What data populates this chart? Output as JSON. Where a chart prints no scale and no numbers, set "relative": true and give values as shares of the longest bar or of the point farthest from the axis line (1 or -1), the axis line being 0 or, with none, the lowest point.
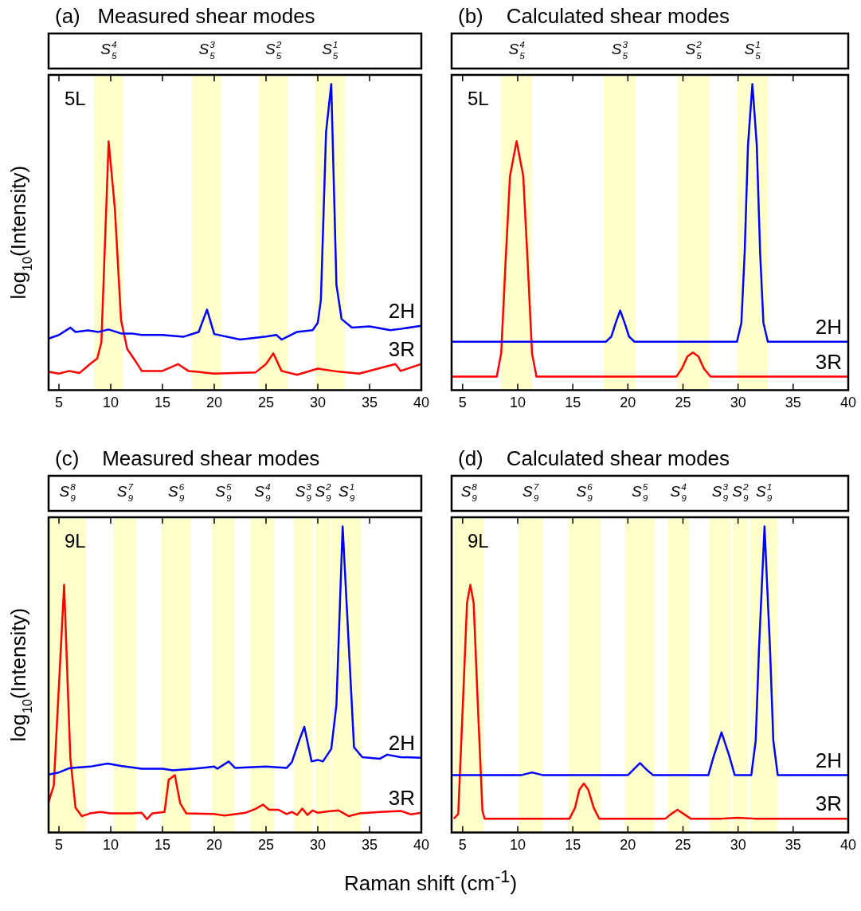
{
  "chart_data": [
    {
      "type": "line",
      "title": "(a)   Measured shear modes",
      "ylabel": "log$_{10}$(Intensity)",
      "relative": true,
      "xlim": [
        4,
        40
      ],
      "xticks": [
        5,
        10,
        15,
        20,
        25,
        30,
        35,
        40
      ],
      "annotations": [
        "5L",
        "S$_{5}$$^{4}$",
        "S$_{5}$$^{3}$",
        "S$_{5}$$^{2}$",
        "S$_{5}$$^{1}$"
      ],
      "bands": [
        {
          "axis": "x",
          "from": 8.4,
          "to": 11.2,
          "color": "#ffffcc"
        },
        {
          "axis": "x",
          "from": 17.85,
          "to": 20.7,
          "color": "#ffffcc"
        },
        {
          "axis": "x",
          "from": 24.3,
          "to": 27.1,
          "color": "#ffffcc"
        },
        {
          "axis": "x",
          "from": 29.75,
          "to": 32.6,
          "color": "#ffffcc"
        }
      ],
      "series": [
        {
          "name": "2H",
          "color": "#0000ff",
          "x": [
            4,
            5,
            6.1,
            6.6,
            7.8,
            8.8,
            9.8,
            11,
            12,
            13,
            15,
            17,
            18.5,
            19.3,
            20,
            22.5,
            25,
            26,
            26.5,
            28,
            29.5,
            30,
            30.3,
            30.8,
            31.3,
            31.8,
            32.3,
            33.3,
            35,
            37,
            38,
            40
          ],
          "values": [
            0.168,
            0.18,
            0.204,
            0.19,
            0.195,
            0.19,
            0.198,
            0.185,
            0.185,
            0.18,
            0.18,
            0.174,
            0.19,
            0.263,
            0.183,
            0.165,
            0.175,
            0.18,
            0.165,
            0.19,
            0.196,
            0.22,
            0.295,
            0.844,
            1.0,
            0.344,
            0.232,
            0.204,
            0.208,
            0.196,
            0.2,
            0.21
          ]
        },
        {
          "name": "3R",
          "color": "#ff0000",
          "x": [
            4,
            5,
            6,
            7,
            8,
            8.7,
            9.1,
            9.8,
            10.4,
            11,
            11.6,
            12.4,
            13,
            15,
            16.5,
            17.5,
            20,
            24,
            25,
            25.7,
            26.5,
            28,
            30,
            32,
            34,
            37.5,
            38,
            40
          ],
          "values": [
            0.06,
            0.054,
            0.0625,
            0.056,
            0.085,
            0.103,
            0.156,
            0.8125,
            0.594,
            0.228,
            0.134,
            0.094,
            0.0625,
            0.0625,
            0.085,
            0.0625,
            0.054,
            0.058,
            0.085,
            0.12,
            0.0625,
            0.05,
            0.07,
            0.06,
            0.054,
            0.085,
            0.0625,
            0.085
          ]
        }
      ]
    },
    {
      "type": "line",
      "title": "(b)    Calculated shear modes",
      "relative": true,
      "xlim": [
        4,
        40
      ],
      "xticks": [
        5,
        10,
        15,
        20,
        25,
        30,
        35,
        40
      ],
      "annotations": [
        "5L",
        "S$_{5}$$^{4}$",
        "S$_{5}$$^{3}$",
        "S$_{5}$$^{2}$",
        "S$_{5}$$^{1}$"
      ],
      "bands": [
        {
          "axis": "x",
          "from": 8.5,
          "to": 11.3,
          "color": "#ffffcc"
        },
        {
          "axis": "x",
          "from": 17.8,
          "to": 20.7,
          "color": "#ffffcc"
        },
        {
          "axis": "x",
          "from": 24.5,
          "to": 27.4,
          "color": "#ffffcc"
        },
        {
          "axis": "x",
          "from": 29.9,
          "to": 32.7,
          "color": "#ffffcc"
        }
      ],
      "series": [
        {
          "name": "2H",
          "color": "#0000ff",
          "x": [
            4,
            18.0,
            18.5,
            18.9,
            19.3,
            19.7,
            20.1,
            20.6,
            29.9,
            30.3,
            30.6,
            30.9,
            31.3,
            31.7,
            32.0,
            32.3,
            32.7,
            40
          ],
          "values": [
            0.158,
            0.158,
            0.175,
            0.22,
            0.26,
            0.22,
            0.175,
            0.158,
            0.158,
            0.22,
            0.45,
            0.8,
            1.0,
            0.8,
            0.45,
            0.22,
            0.158,
            0.158
          ]
        },
        {
          "name": "3R",
          "color": "#ff0000",
          "x": [
            4,
            8.1,
            8.5,
            8.9,
            9.3,
            9.9,
            10.5,
            10.9,
            11.3,
            11.7,
            24.4,
            24.9,
            25.4,
            25.9,
            26.4,
            26.9,
            27.5,
            40
          ],
          "values": [
            0.044,
            0.044,
            0.12,
            0.42,
            0.7,
            0.813,
            0.7,
            0.42,
            0.12,
            0.044,
            0.044,
            0.07,
            0.11,
            0.123,
            0.11,
            0.07,
            0.044,
            0.044
          ]
        }
      ]
    },
    {
      "type": "line",
      "title": "(c)    Measured shear modes",
      "ylabel": "log$_{10}$(Intensity)",
      "xlabel": "Raman shift (cm$^{-1}$)",
      "relative": true,
      "xlim": [
        4,
        40
      ],
      "xticks": [
        5,
        10,
        15,
        20,
        25,
        30,
        35,
        40
      ],
      "annotations": [
        "9L",
        "S$_{9}$$^{8}$",
        "S$_{9}$$^{7}$",
        "S$_{9}$$^{6}$",
        "S$_{9}$$^{5}$",
        "S$_{9}$$^{4}$",
        "S$_{9}$$^{3}$",
        "S$_{9}$$^{2}$",
        "S$_{9}$$^{1}$"
      ],
      "bands": [
        {
          "axis": "x",
          "from": 4.05,
          "to": 7.6,
          "color": "#ffffcc"
        },
        {
          "axis": "x",
          "from": 10.3,
          "to": 12.45,
          "color": "#ffffcc"
        },
        {
          "axis": "x",
          "from": 14.9,
          "to": 17.75,
          "color": "#ffffcc"
        },
        {
          "axis": "x",
          "from": 19.8,
          "to": 21.95,
          "color": "#ffffcc"
        },
        {
          "axis": "x",
          "from": 23.5,
          "to": 25.8,
          "color": "#ffffcc"
        },
        {
          "axis": "x",
          "from": 27.7,
          "to": 29.5,
          "color": "#ffffcc"
        },
        {
          "axis": "x",
          "from": 29.8,
          "to": 31.2,
          "color": "#ffffcc"
        },
        {
          "axis": "x",
          "from": 31.35,
          "to": 34.2,
          "color": "#ffffcc"
        }
      ],
      "series": [
        {
          "name": "2H",
          "color": "#0000ff",
          "x": [
            4,
            5,
            6,
            8,
            9.7,
            11,
            13,
            15,
            16,
            18,
            20,
            20.3,
            21.4,
            22,
            25,
            27,
            27.5,
            28.2,
            28.7,
            29.4,
            30,
            30.5,
            31.3,
            31.8,
            32.4,
            33.5,
            34.3,
            36,
            36.7,
            38,
            40
          ],
          "values": [
            0.189,
            0.196,
            0.21,
            0.215,
            0.225,
            0.217,
            0.208,
            0.208,
            0.203,
            0.208,
            0.215,
            0.208,
            0.232,
            0.211,
            0.215,
            0.211,
            0.23,
            0.3,
            0.345,
            0.232,
            0.237,
            0.232,
            0.273,
            0.416,
            1.0,
            0.278,
            0.246,
            0.241,
            0.254,
            0.246,
            0.244
          ]
        },
        {
          "name": "3R",
          "color": "#ff0000",
          "x": [
            4,
            4.5,
            5.5,
            6.1,
            6.6,
            7.2,
            8,
            9,
            10,
            12,
            13,
            13.5,
            14,
            15.2,
            15.6,
            16.2,
            16.7,
            17.3,
            20,
            21,
            23,
            24,
            24.7,
            25.3,
            26.2,
            27,
            27.5,
            28,
            28.5,
            29,
            29.5,
            30,
            31,
            32,
            33,
            34,
            36,
            38,
            39,
            40
          ],
          "values": [
            0.1,
            0.153,
            0.809,
            0.244,
            0.081,
            0.053,
            0.062,
            0.067,
            0.062,
            0.062,
            0.064,
            0.043,
            0.062,
            0.067,
            0.172,
            0.187,
            0.096,
            0.062,
            0.06,
            0.055,
            0.064,
            0.077,
            0.091,
            0.074,
            0.074,
            0.06,
            0.067,
            0.057,
            0.078,
            0.057,
            0.072,
            0.064,
            0.069,
            0.072,
            0.053,
            0.062,
            0.067,
            0.07,
            0.059,
            0.064
          ]
        }
      ]
    },
    {
      "type": "line",
      "title": "(d)    Calculated shear modes",
      "relative": true,
      "xlim": [
        4,
        40
      ],
      "xticks": [
        5,
        10,
        15,
        20,
        25,
        30,
        35,
        40
      ],
      "annotations": [
        "9L",
        "S$_{9}$$^{8}$",
        "S$_{9}$$^{7}$",
        "S$_{9}$$^{6}$",
        "S$_{9}$$^{5}$",
        "S$_{9}$$^{4}$",
        "S$_{9}$$^{3}$",
        "S$_{9}$$^{2}$",
        "S$_{9}$$^{1}$"
      ],
      "bands": [
        {
          "axis": "x",
          "from": 4.2,
          "to": 6.95,
          "color": "#ffffcc"
        },
        {
          "axis": "x",
          "from": 10.06,
          "to": 12.27,
          "color": "#ffffcc"
        },
        {
          "axis": "x",
          "from": 14.6,
          "to": 17.5,
          "color": "#ffffcc"
        },
        {
          "axis": "x",
          "from": 19.75,
          "to": 22.4,
          "color": "#ffffcc"
        },
        {
          "axis": "x",
          "from": 23.6,
          "to": 25.55,
          "color": "#ffffcc"
        },
        {
          "axis": "x",
          "from": 27.4,
          "to": 29.3,
          "color": "#ffffcc"
        },
        {
          "axis": "x",
          "from": 29.5,
          "to": 30.9,
          "color": "#ffffcc"
        },
        {
          "axis": "x",
          "from": 31.1,
          "to": 33.6,
          "color": "#ffffcc"
        }
      ],
      "series": [
        {
          "name": "2H",
          "color": "#0000ff",
          "x": [
            4,
            10.3,
            11.3,
            12.3,
            20.0,
            20.5,
            21.1,
            21.7,
            22.3,
            27.3,
            27.8,
            28.5,
            29.2,
            29.7,
            31.2,
            31.6,
            31.9,
            32.4,
            32.9,
            33.2,
            33.6,
            40
          ],
          "values": [
            0.187,
            0.187,
            0.196,
            0.187,
            0.187,
            0.205,
            0.227,
            0.205,
            0.187,
            0.187,
            0.25,
            0.327,
            0.25,
            0.187,
            0.187,
            0.3,
            0.6,
            1.0,
            0.6,
            0.3,
            0.187,
            0.187
          ]
        },
        {
          "name": "3R",
          "color": "#ff0000",
          "x": [
            4.2,
            4.6,
            5.0,
            5.4,
            5.7,
            6.0,
            6.4,
            6.8,
            7.0,
            14.7,
            15.2,
            15.6,
            16.0,
            16.4,
            16.9,
            17.4,
            23.4,
            24.0,
            24.5,
            25.0,
            25.7,
            28.5,
            30,
            31.5,
            40
          ],
          "values": [
            0.045,
            0.06,
            0.4,
            0.75,
            0.809,
            0.75,
            0.4,
            0.07,
            0.045,
            0.045,
            0.08,
            0.14,
            0.16,
            0.14,
            0.08,
            0.045,
            0.045,
            0.062,
            0.074,
            0.062,
            0.045,
            0.045,
            0.048,
            0.045,
            0.045
          ]
        }
      ]
    }
  ]
}
